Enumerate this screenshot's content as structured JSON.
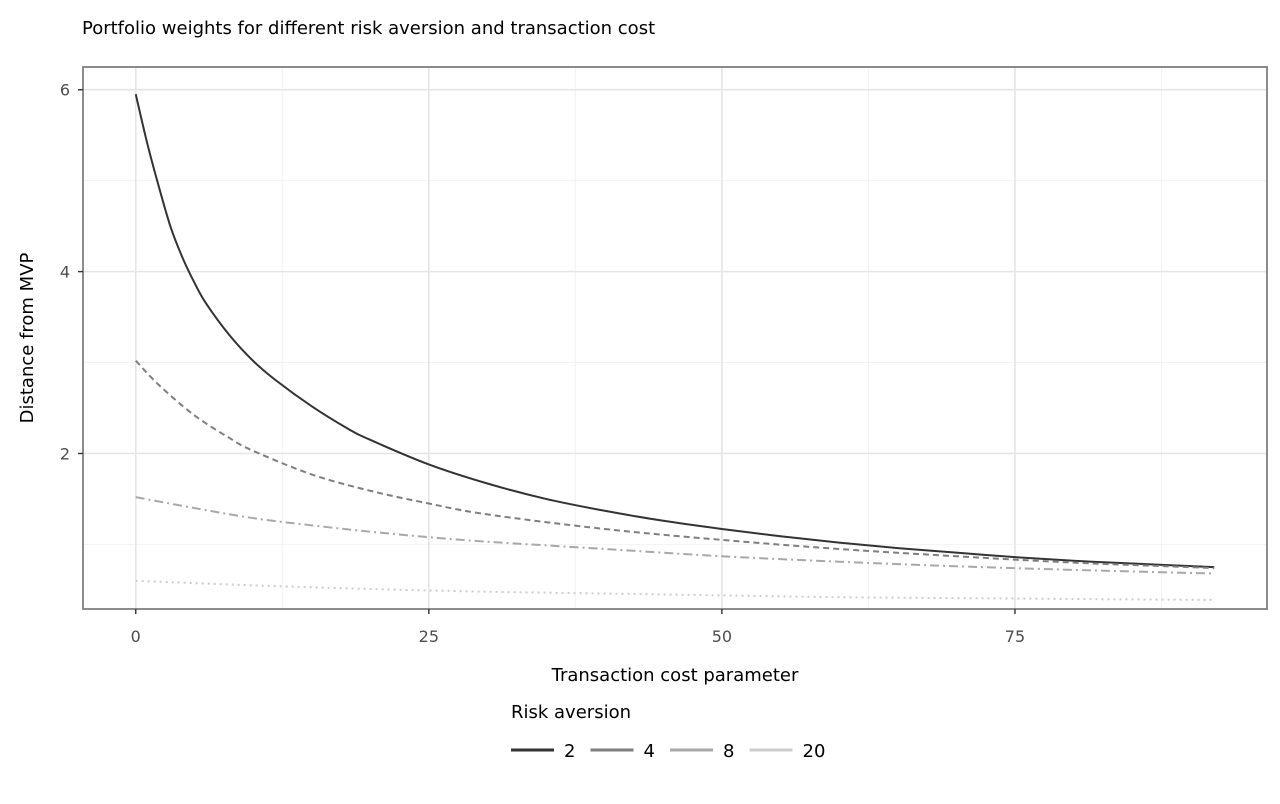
{
  "chart_data": {
    "type": "line",
    "title": "Portfolio weights for different risk aversion and transaction cost",
    "xlabel": "Transaction cost parameter",
    "ylabel": "Distance from MVP",
    "xlim": [
      -4.5,
      96.5
    ],
    "ylim": [
      0.29,
      6.25
    ],
    "x_ticks": [
      0,
      25,
      50,
      75
    ],
    "y_ticks": [
      2,
      4,
      6
    ],
    "grid": true,
    "legend": {
      "title": "Risk aversion",
      "position": "bottom",
      "entries": [
        "2",
        "4",
        "8",
        "20"
      ]
    },
    "series": [
      {
        "name": "2",
        "color": "#333333",
        "linestyle": "solid",
        "x": [
          0,
          1,
          2,
          3,
          4,
          5,
          6,
          8,
          10,
          12,
          15,
          18,
          20,
          25,
          30,
          35,
          40,
          45,
          50,
          55,
          60,
          65,
          70,
          75,
          80,
          85,
          92
        ],
        "y": [
          5.95,
          5.4,
          4.92,
          4.48,
          4.15,
          3.88,
          3.65,
          3.3,
          3.02,
          2.8,
          2.52,
          2.28,
          2.15,
          1.88,
          1.67,
          1.5,
          1.37,
          1.26,
          1.17,
          1.09,
          1.02,
          0.96,
          0.91,
          0.86,
          0.82,
          0.79,
          0.75
        ]
      },
      {
        "name": "4",
        "color": "#7f7f7f",
        "linestyle": "dashed",
        "x": [
          0,
          2,
          5,
          8,
          10,
          15,
          20,
          25,
          30,
          40,
          50,
          60,
          70,
          80,
          92
        ],
        "y": [
          3.02,
          2.75,
          2.42,
          2.17,
          2.03,
          1.77,
          1.59,
          1.45,
          1.33,
          1.17,
          1.05,
          0.95,
          0.87,
          0.8,
          0.74
        ]
      },
      {
        "name": "8",
        "color": "#a8a8a8",
        "linestyle": "dashdot",
        "x": [
          0,
          5,
          10,
          15,
          20,
          25,
          30,
          40,
          50,
          60,
          70,
          80,
          92
        ],
        "y": [
          1.52,
          1.4,
          1.29,
          1.21,
          1.14,
          1.08,
          1.03,
          0.95,
          0.87,
          0.81,
          0.76,
          0.72,
          0.68
        ]
      },
      {
        "name": "20",
        "color": "#cccccc",
        "linestyle": "dotted",
        "x": [
          0,
          10,
          20,
          30,
          40,
          50,
          60,
          70,
          80,
          92
        ],
        "y": [
          0.6,
          0.55,
          0.51,
          0.48,
          0.46,
          0.44,
          0.42,
          0.41,
          0.4,
          0.39
        ]
      }
    ]
  }
}
